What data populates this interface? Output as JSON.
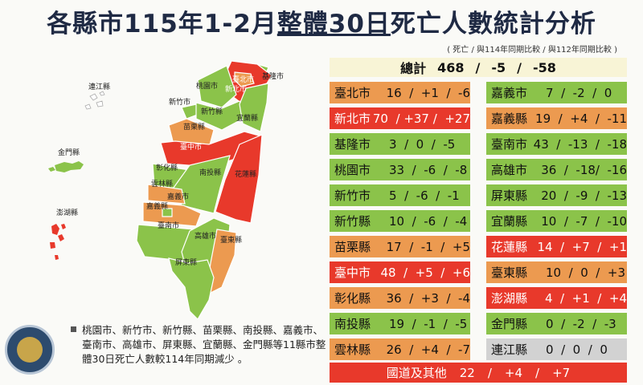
{
  "title": {
    "pre": "各縣市115年1-2月",
    "underlined": "整體30日",
    "post": "死亡人數統計分析"
  },
  "subtitle": "( 死亡 / 與114年同期比較 / 與112年同期比較 )",
  "total": {
    "label": "總計",
    "deaths": "468",
    "sep": "/",
    "vs114": "-5",
    "vs112": "-58"
  },
  "left_rows": [
    {
      "name": "臺北市",
      "values": "16  /  +1  /  -6",
      "status": "orange"
    },
    {
      "name": "新北市",
      "values": "70  / +37 /  +27",
      "status": "red"
    },
    {
      "name": "基隆市",
      "values": "3  /  0  /  -5",
      "status": "green"
    },
    {
      "name": "桃園市",
      "values": "33  /  -6  /  -8",
      "status": "green"
    },
    {
      "name": "新竹市",
      "values": "5  /  -6  /  -1",
      "status": "green"
    },
    {
      "name": "新竹縣",
      "values": "10  /  -6  /  -4",
      "status": "green"
    },
    {
      "name": "苗栗縣",
      "values": "17  /  -1  /  +5",
      "status": "orange"
    },
    {
      "name": "臺中市",
      "values": "48  /  +5  /  +6",
      "status": "red"
    },
    {
      "name": "彰化縣",
      "values": "36  /  +3  /  -4",
      "status": "orange"
    },
    {
      "name": "南投縣",
      "values": "19  /  -1  /  -5",
      "status": "green"
    },
    {
      "name": "雲林縣",
      "values": "26  /  +4  /  -7",
      "status": "orange"
    }
  ],
  "right_rows": [
    {
      "name": "嘉義市",
      "values": "7  /  -2  /  0",
      "status": "green"
    },
    {
      "name": "嘉義縣",
      "values": "19  /  +4  /  -11",
      "status": "orange"
    },
    {
      "name": "臺南市",
      "values": "43  /  -13  /  -18",
      "status": "green"
    },
    {
      "name": "高雄市",
      "values": "36  /  -18/  -16",
      "status": "green"
    },
    {
      "name": "屏東縣",
      "values": "20  /  -9  /  -13",
      "status": "green"
    },
    {
      "name": "宜蘭縣",
      "values": "10  /  -7  /  -10",
      "status": "green"
    },
    {
      "name": "花蓮縣",
      "values": "14  /  +7  /  +1",
      "status": "red"
    },
    {
      "name": "臺東縣",
      "values": "10  /  0  /  +3",
      "status": "orange"
    },
    {
      "name": "澎湖縣",
      "values": "4  /  +1  /  +4",
      "status": "red"
    },
    {
      "name": "金門縣",
      "values": "0  /  -2  /  -3",
      "status": "green"
    },
    {
      "name": "連江縣",
      "values": "0  /  0  /  0",
      "status": "grey"
    }
  ],
  "bottom": {
    "label": "國道及其他",
    "deaths": "22",
    "vs114": "+4",
    "vs112": "+7"
  },
  "note": "桃園市、新竹市、新竹縣、苗栗縣、南投縣、嘉義市、臺南市、高雄市、屏東縣、宜蘭縣、金門縣等11縣市整體30日死亡人數較114年同期減少 。",
  "map_labels": [
    "連江縣",
    "金門縣",
    "澎湖縣",
    "基隆市",
    "臺北市",
    "新北市",
    "桃園市",
    "新竹市",
    "新竹縣",
    "宜蘭縣",
    "苗栗縣",
    "臺中市",
    "花蓮縣",
    "南投縣",
    "彰化縣",
    "雲林縣",
    "嘉義市",
    "嘉義縣",
    "臺南市",
    "高雄市",
    "臺東縣",
    "屏東縣"
  ],
  "colors": {
    "green": "#8bc34a",
    "orange": "#ec9a50",
    "red": "#e8392b",
    "grey": "#d2d2d2"
  }
}
